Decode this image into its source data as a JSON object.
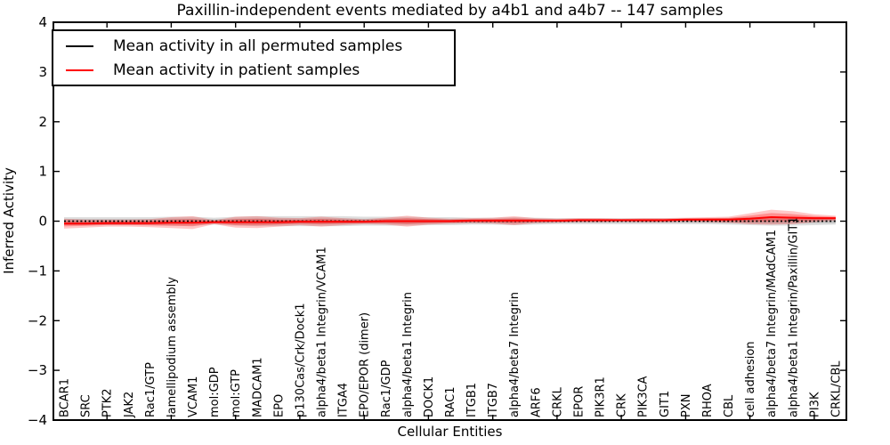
{
  "title": "Paxillin-independent events mediated by a4b1 and a4b7 -- 147 samples",
  "chart_data": {
    "type": "line",
    "title": "Paxillin-independent events mediated by a4b1 and a4b7 -- 147 samples",
    "xlabel": "Cellular Entities",
    "ylabel": "Inferred Activity",
    "ylim": [
      -4,
      4
    ],
    "yticks": [
      -4,
      -3,
      -2,
      -1,
      0,
      1,
      2,
      3,
      4
    ],
    "grid": false,
    "legend_position": "upper left",
    "categories": [
      "BCAR1",
      "SRC",
      "PTK2",
      "JAK2",
      "Rac1/GTP",
      "lamellipodium assembly",
      "VCAM1",
      "mol:GDP",
      "mol:GTP",
      "MADCAM1",
      "EPO",
      "p130Cas/Crk/Dock1",
      "alpha4/beta1 Integrin/VCAM1",
      "ITGA4",
      "EPO/EPOR (dimer)",
      "Rac1/GDP",
      "alpha4/beta1 Integrin",
      "DOCK1",
      "RAC1",
      "ITGB1",
      "ITGB7",
      "alpha4/beta7 Integrin",
      "ARF6",
      "CRKL",
      "EPOR",
      "PIK3R1",
      "CRK",
      "PIK3CA",
      "GIT1",
      "PXN",
      "RHOA",
      "CBL",
      "cell adhesion",
      "alpha4/beta7 Integrin/MAdCAM1",
      "alpha4/beta1 Integrin/Paxillin/GIT1",
      "PI3K",
      "CRKL/CBL"
    ],
    "series": [
      {
        "name": "Mean activity in all permuted samples",
        "color": "#000000",
        "style": "dotted",
        "values": [
          0,
          0,
          0,
          0,
          0,
          0,
          0,
          0,
          0,
          0,
          0,
          0,
          0,
          0,
          0,
          0,
          0,
          0,
          0,
          0,
          0,
          0,
          0,
          0,
          0,
          0,
          0,
          0,
          0,
          0,
          0,
          0,
          0,
          0,
          0,
          0,
          0
        ],
        "band": [
          0.08,
          0.08,
          0.08,
          0.08,
          0.08,
          0.09,
          0.09,
          0.07,
          0.09,
          0.1,
          0.1,
          0.1,
          0.1,
          0.1,
          0.09,
          0.09,
          0.09,
          0.08,
          0.08,
          0.07,
          0.07,
          0.08,
          0.07,
          0.06,
          0.06,
          0.06,
          0.06,
          0.06,
          0.06,
          0.06,
          0.06,
          0.07,
          0.08,
          0.09,
          0.09,
          0.08,
          0.07
        ]
      },
      {
        "name": "Mean activity in patient samples",
        "color": "#ff0000",
        "style": "solid",
        "values": [
          -0.05,
          -0.05,
          -0.04,
          -0.04,
          -0.04,
          -0.03,
          -0.03,
          -0.02,
          -0.02,
          -0.02,
          -0.02,
          -0.01,
          -0.01,
          -0.01,
          -0.01,
          0,
          0,
          0,
          0,
          0.01,
          0.01,
          0.01,
          0.01,
          0.01,
          0.02,
          0.02,
          0.02,
          0.02,
          0.02,
          0.03,
          0.03,
          0.03,
          0.05,
          0.08,
          0.07,
          0.06,
          0.06
        ],
        "band": [
          0.1,
          0.08,
          0.07,
          0.07,
          0.08,
          0.11,
          0.13,
          0.04,
          0.11,
          0.12,
          0.09,
          0.07,
          0.1,
          0.07,
          0.05,
          0.07,
          0.11,
          0.07,
          0.05,
          0.05,
          0.06,
          0.09,
          0.05,
          0.04,
          0.04,
          0.04,
          0.03,
          0.04,
          0.04,
          0.04,
          0.05,
          0.06,
          0.11,
          0.15,
          0.13,
          0.08,
          0.05
        ]
      }
    ]
  }
}
